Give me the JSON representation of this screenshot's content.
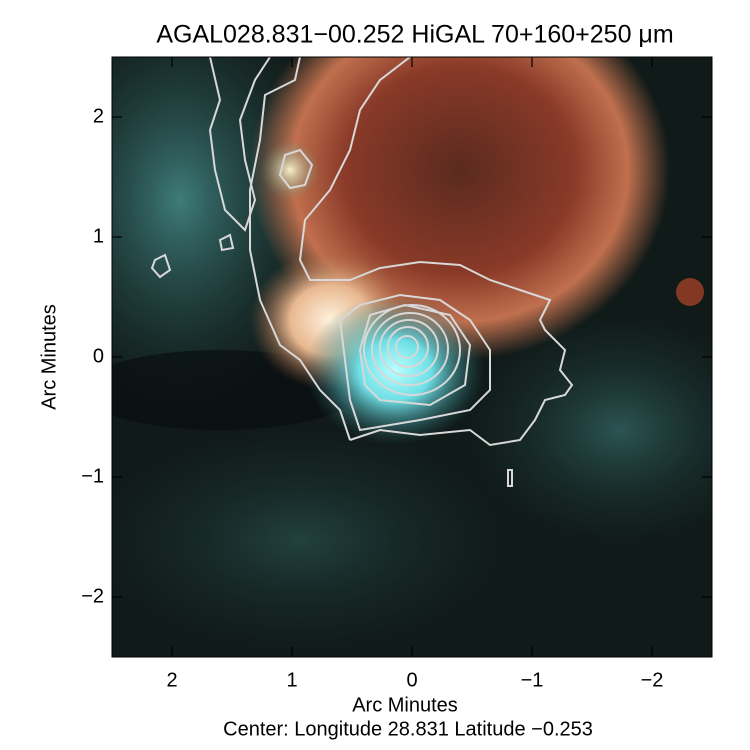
{
  "chart_data": {
    "type": "image",
    "title": "AGAL028.831−00.252 HiGAL 70+160+250 μm",
    "xlabel": "Arc Minutes",
    "ylabel": "Arc Minutes",
    "subtitle": "Center:  Longitude 28.831 Latitude −0.253",
    "xlim": [
      2.5,
      -2.5
    ],
    "ylim": [
      -2.5,
      2.5
    ],
    "xticks": [
      2,
      1,
      0,
      {
        "value": -1,
        "label": "−1"
      },
      {
        "value": -2,
        "label": "−2"
      }
    ],
    "yticks": [
      {
        "value": -2,
        "label": "−2"
      },
      {
        "value": -1,
        "label": "−1"
      },
      0,
      1,
      2
    ]
  }
}
